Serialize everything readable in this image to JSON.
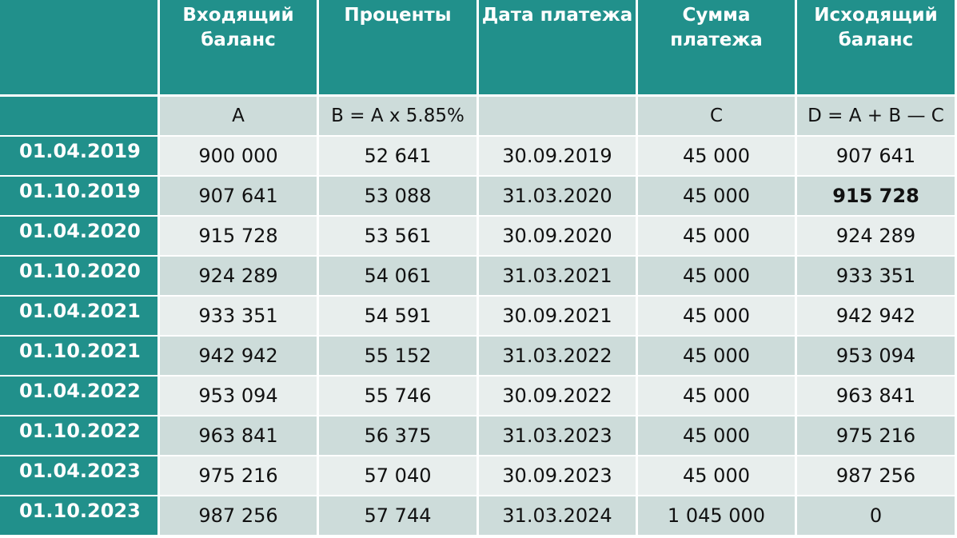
{
  "headers": [
    "",
    "Входящий баланс",
    "Проценты",
    "Дата платежа",
    "Сумма платежа",
    "Исходящий баланс"
  ],
  "formulas": [
    "",
    "A",
    "B = A x 5.85%",
    "",
    "C",
    "D = A + B — C"
  ],
  "rows": [
    {
      "date": "01.04.2019",
      "opening": "900 000",
      "interest": "52 641",
      "pay_date": "30.09.2019",
      "payment": "45 000",
      "closing": "907 641"
    },
    {
      "date": "01.10.2019",
      "opening": "907 641",
      "interest": "53 088",
      "pay_date": "31.03.2020",
      "payment": "45 000",
      "closing": "915 728"
    },
    {
      "date": "01.04.2020",
      "opening": "915 728",
      "interest": "53 561",
      "pay_date": "30.09.2020",
      "payment": "45 000",
      "closing": "924 289"
    },
    {
      "date": "01.10.2020",
      "opening": "924 289",
      "interest": "54 061",
      "pay_date": "31.03.2021",
      "payment": "45 000",
      "closing": "933 351"
    },
    {
      "date": "01.04.2021",
      "opening": "933 351",
      "interest": "54 591",
      "pay_date": "30.09.2021",
      "payment": "45 000",
      "closing": "942 942"
    },
    {
      "date": "01.10.2021",
      "opening": "942 942",
      "interest": "55 152",
      "pay_date": "31.03.2022",
      "payment": "45 000",
      "closing": "953 094"
    },
    {
      "date": "01.04.2022",
      "opening": "953 094",
      "interest": "55 746",
      "pay_date": "30.09.2022",
      "payment": "45 000",
      "closing": "963 841"
    },
    {
      "date": "01.10.2022",
      "opening": "963 841",
      "interest": "56 375",
      "pay_date": "31.03.2023",
      "payment": "45 000",
      "closing": "975 216"
    },
    {
      "date": "01.04.2023",
      "opening": "975 216",
      "interest": "57 040",
      "pay_date": "30.09.2023",
      "payment": "45 000",
      "closing": "987 256"
    },
    {
      "date": "01.10.2023",
      "opening": "987 256",
      "interest": "57 744",
      "pay_date": "31.03.2024",
      "payment": "1 045 000",
      "closing": "0"
    }
  ],
  "colors": {
    "header": "#21908b",
    "row_light": "#e8eeed",
    "row_dark": "#cddcda"
  }
}
